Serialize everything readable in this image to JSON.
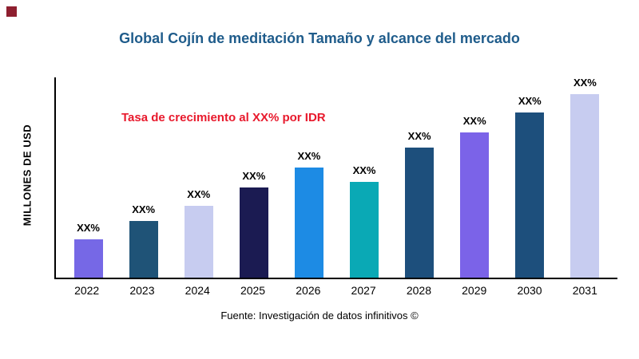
{
  "page": {
    "corner_mark_color": "#8E1F2F",
    "title_color": "#1F5C8B",
    "source": "Fuente: Investigación de datos infinitivos ©"
  },
  "chart_data": {
    "type": "bar",
    "title": "Global Cojín de meditación Tamaño y alcance del mercado",
    "xlabel": "",
    "ylabel": "MILLONES DE USD",
    "annotation": "Tasa de crecimiento al XX% por IDR",
    "annotation_color": "#E8192C",
    "categories": [
      "2022",
      "2023",
      "2024",
      "2025",
      "2026",
      "2027",
      "2028",
      "2029",
      "2030",
      "2031"
    ],
    "bar_value_labels": [
      "XX%",
      "XX%",
      "XX%",
      "XX%",
      "XX%",
      "XX%",
      "XX%",
      "XX%",
      "XX%",
      "XX%"
    ],
    "values_relative": [
      21,
      31,
      39,
      49,
      60,
      52,
      71,
      79,
      90,
      100
    ],
    "bar_colors": [
      "#7668E6",
      "#1F5377",
      "#C7CCF0",
      "#1B1B52",
      "#1D8BE4",
      "#0AA9B5",
      "#1D4F7C",
      "#7B63E8",
      "#1D4F7C",
      "#C7CCF0"
    ],
    "ylim": [
      0,
      null
    ],
    "grid": false,
    "legend": false,
    "note": "Numeric y-axis tick values are not shown in the chart; bar values are relative heights (max bar = 100)."
  }
}
